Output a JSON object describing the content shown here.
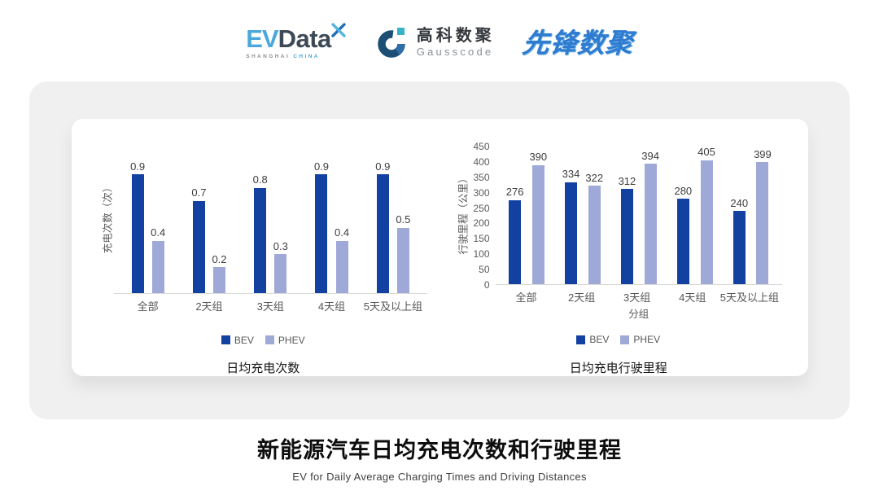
{
  "header": {
    "evdata": {
      "ev": "EV",
      "data": "Data",
      "tagline_left": "SHANGHAI",
      "tagline_right": "CHINA"
    },
    "gausscode": {
      "name_cn": "高科数聚",
      "name_en": "Gausscode"
    },
    "pioneer": {
      "name": "先锋数聚"
    }
  },
  "chart_data": [
    {
      "type": "bar",
      "title": "日均充电次数",
      "ylabel": "充电次数（次）",
      "xlabel": "",
      "categories": [
        "全部",
        "2天组",
        "3天组",
        "4天组",
        "5天及以上组"
      ],
      "series": [
        {
          "name": "BEV",
          "color": "#1341A2",
          "values": [
            0.9,
            0.7,
            0.8,
            0.9,
            0.9
          ]
        },
        {
          "name": "PHEV",
          "color": "#9FA9D8",
          "values": [
            0.4,
            0.2,
            0.3,
            0.4,
            0.5
          ]
        }
      ],
      "ylim": [
        0,
        1.0
      ],
      "yticks": [],
      "grid": false,
      "legend_position": "bottom"
    },
    {
      "type": "bar",
      "title": "日均充电行驶里程",
      "ylabel": "行驶里程（公里）",
      "xlabel": "分组",
      "categories": [
        "全部",
        "2天组",
        "3天组",
        "4天组",
        "5天及以上组"
      ],
      "series": [
        {
          "name": "BEV",
          "color": "#1341A2",
          "values": [
            276,
            334,
            312,
            280,
            240
          ]
        },
        {
          "name": "PHEV",
          "color": "#9FA9D8",
          "values": [
            390,
            322,
            394,
            405,
            399
          ]
        }
      ],
      "ylim": [
        0,
        450
      ],
      "yticks": [
        0,
        50,
        100,
        150,
        200,
        250,
        300,
        350,
        400,
        450
      ],
      "grid": false,
      "legend_position": "bottom"
    }
  ],
  "footer": {
    "title": "新能源汽车日均充电次数和行驶里程",
    "subtitle": "EV for Daily Average Charging Times and Driving Distances"
  }
}
